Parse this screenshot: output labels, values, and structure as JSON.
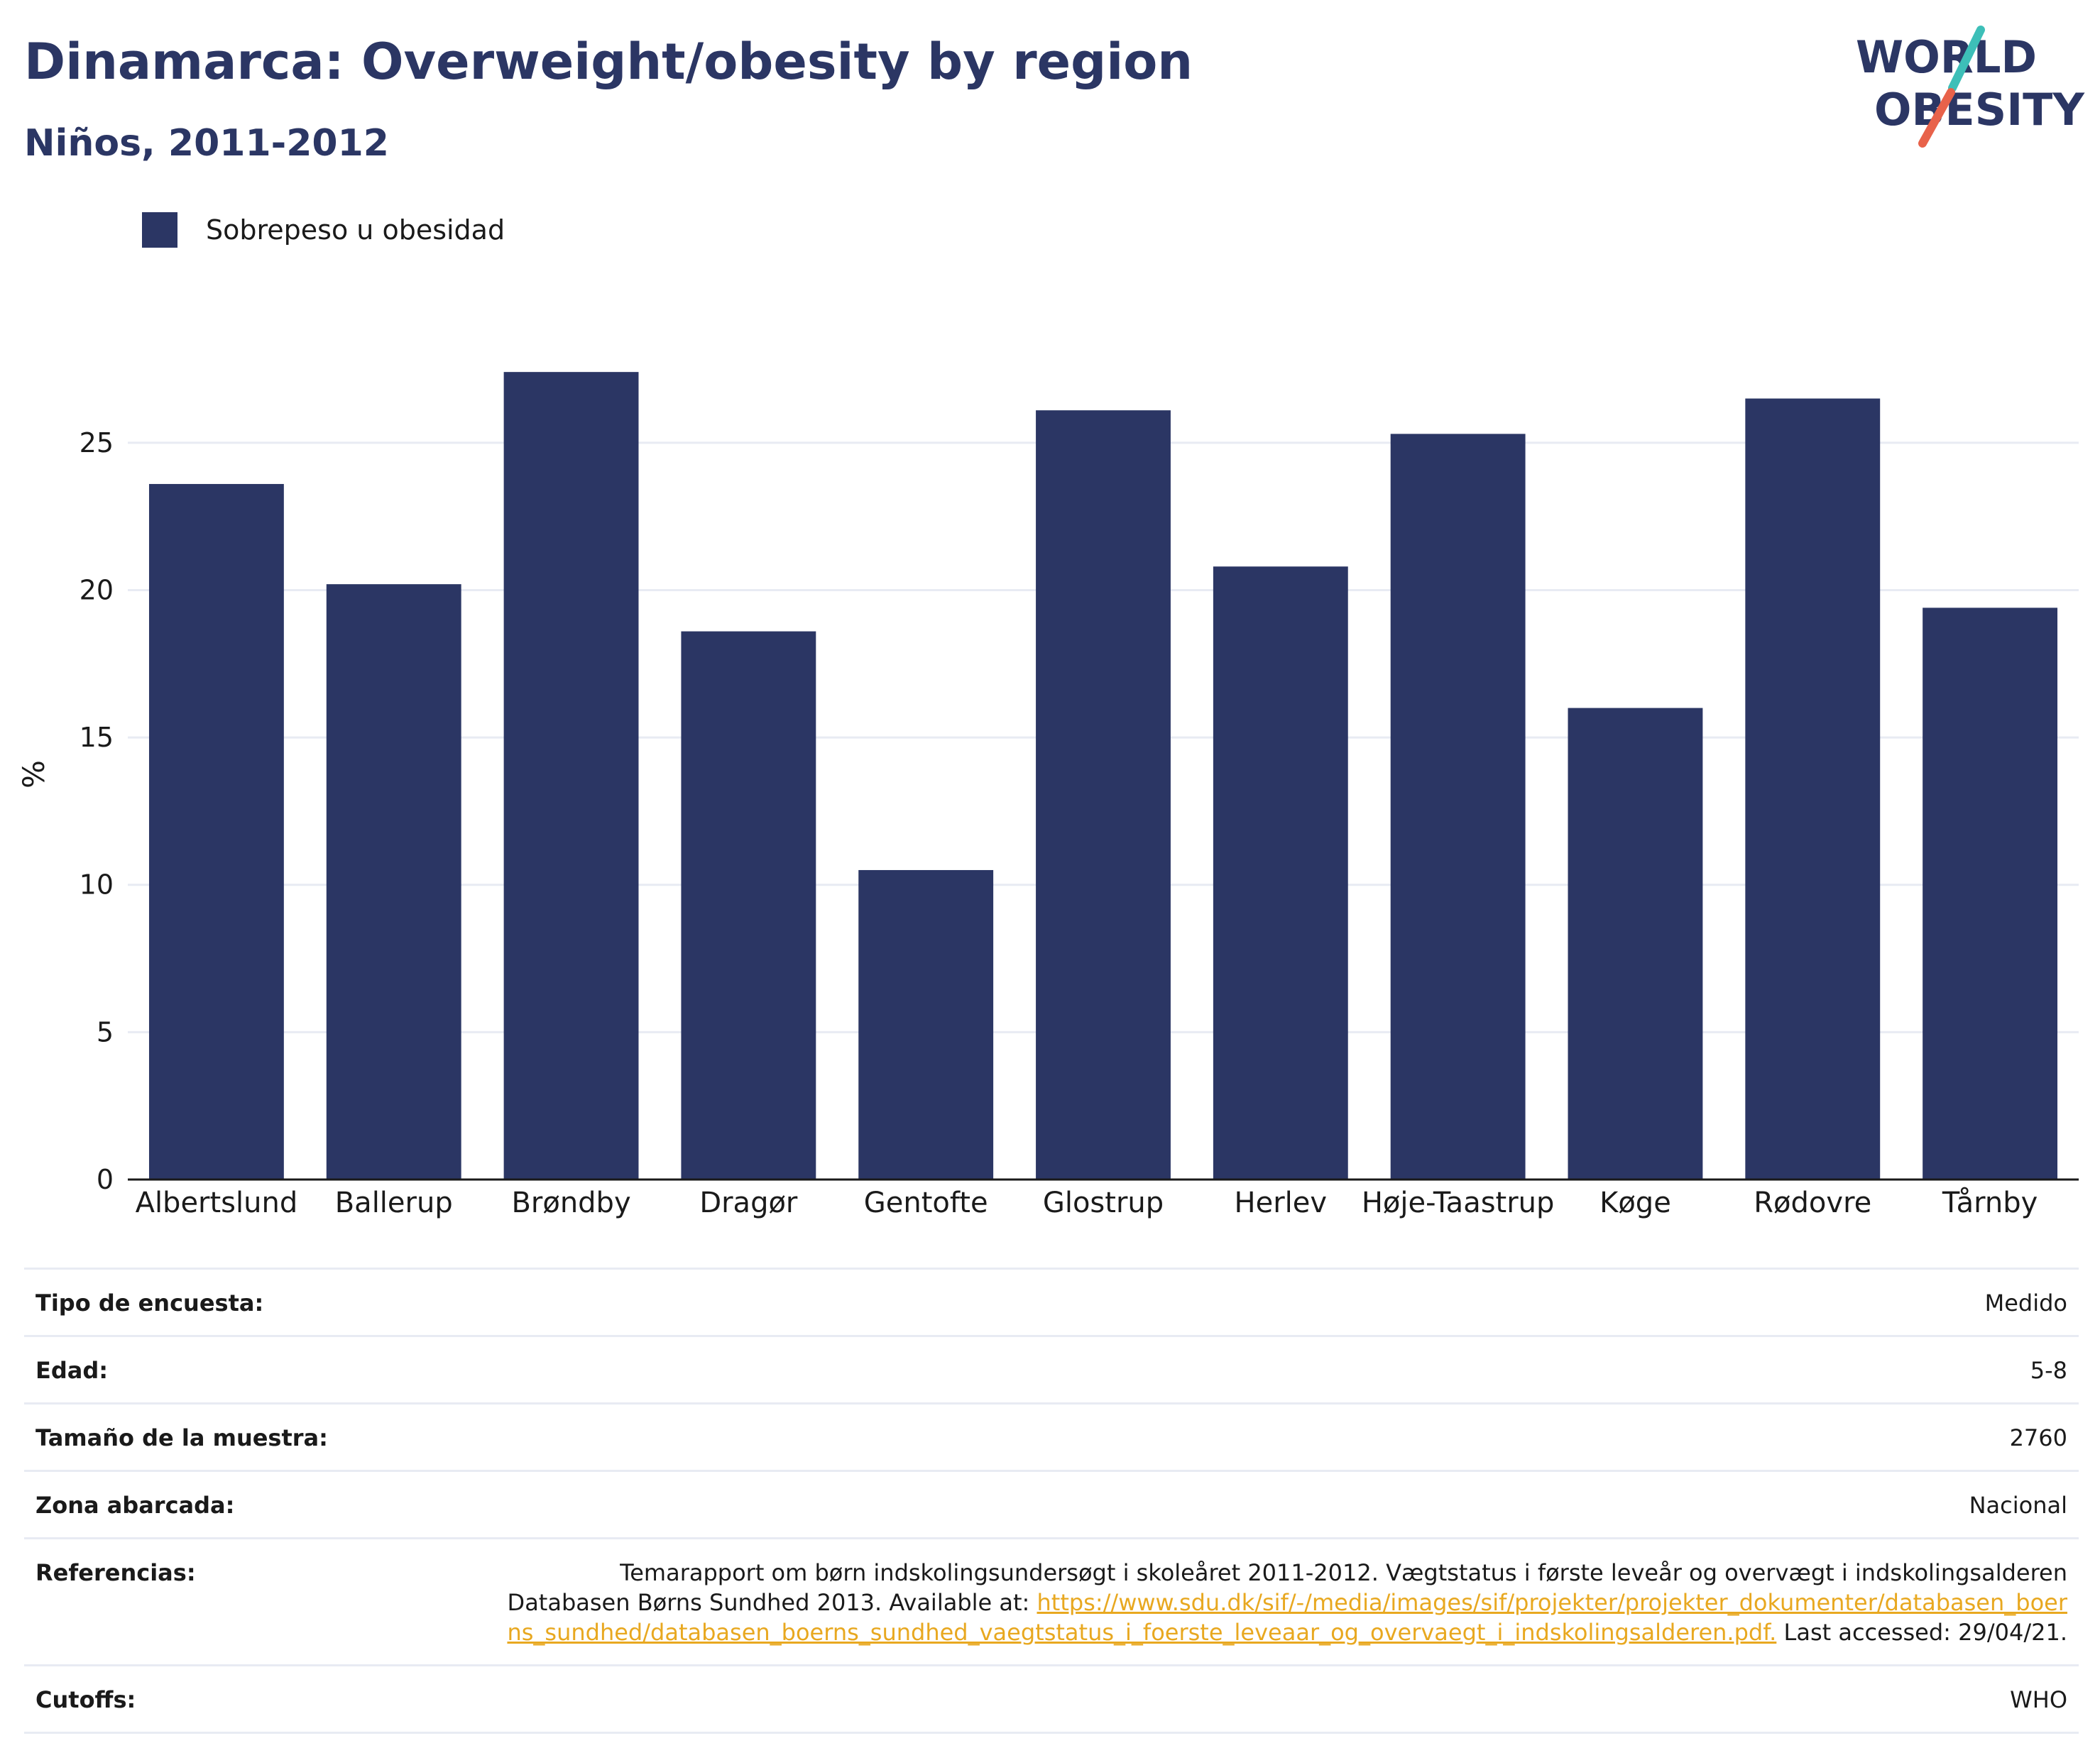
{
  "header": {
    "title": "Dinamarca: Overweight/obesity by region",
    "subtitle": "Niños, 2011-2012"
  },
  "logo": {
    "line1": "WORLD",
    "line2": "OBESITY",
    "colors": {
      "text": "#2b3664",
      "slash_teal": "#3dbfb8",
      "slash_coral": "#e8624a"
    }
  },
  "colors": {
    "bar": "#2b3664",
    "grid": "#e8ebf3",
    "axis": "#1a1a1a",
    "link": "#e8a820"
  },
  "chart_data": {
    "type": "bar",
    "ylabel": "%",
    "ylim": [
      0,
      27.5
    ],
    "yticks": [
      0,
      5,
      10,
      15,
      20,
      25
    ],
    "grid": true,
    "legend_position": "top-left",
    "categories": [
      "Albertslund",
      "Ballerup",
      "Brøndby",
      "Dragør",
      "Gentofte",
      "Glostrup",
      "Herlev",
      "Høje-Taastrup",
      "Køge",
      "Rødovre",
      "Tårnby"
    ],
    "series": [
      {
        "name": "Sobrepeso u obesidad",
        "values": [
          23.6,
          20.2,
          27.4,
          18.6,
          10.5,
          26.1,
          20.8,
          25.3,
          16.0,
          26.5,
          19.4
        ]
      }
    ]
  },
  "meta": {
    "survey_type": {
      "label": "Tipo de encuesta:",
      "value": "Medido"
    },
    "age": {
      "label": "Edad:",
      "value": "5-8"
    },
    "sample_size": {
      "label": "Tamaño de la muestra:",
      "value": "2760"
    },
    "area": {
      "label": "Zona abarcada:",
      "value": "Nacional"
    },
    "references": {
      "label": "Referencias:",
      "text_before": "Temarapport om børn indskolingsundersøgt i skoleåret 2011-2012. Vægtstatus i første leveår og overvægt i indskolingsalderen Databasen Børns Sundhed 2013. Available at: ",
      "link": "https://www.sdu.dk/sif/-/media/images/sif/projekter/projekter_dokumenter/databasen_boerns_sundhed/databasen_boerns_sundhed_vaegtstatus_i_foerste_leveaar_og_overvaegt_i_indskolingsalderen.pdf.",
      "text_after": " Last accessed: 29/04/21."
    },
    "cutoffs": {
      "label": "Cutoffs:",
      "value": "WHO"
    }
  }
}
